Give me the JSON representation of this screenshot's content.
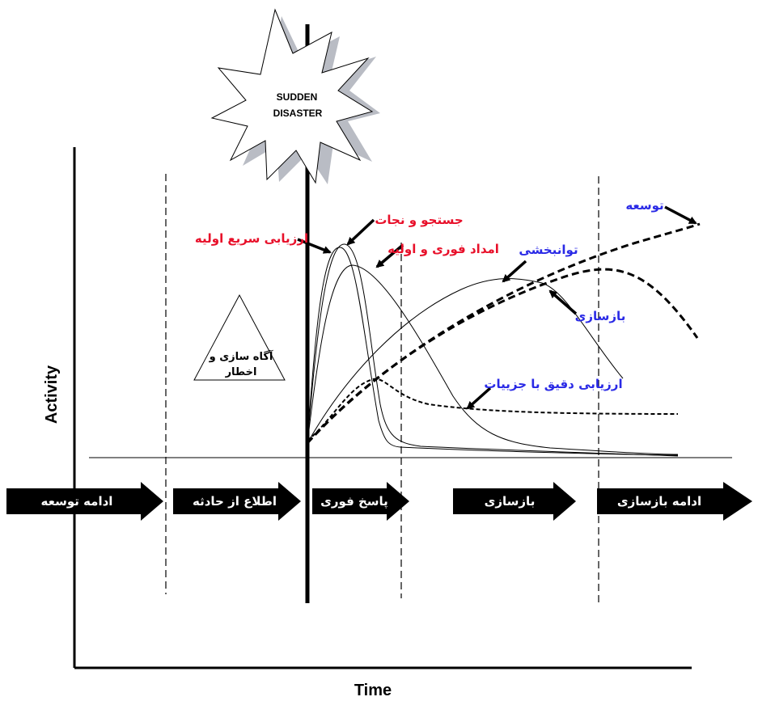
{
  "disaster": {
    "line1": "SUDDEN",
    "line2": "DISASTER"
  },
  "axes": {
    "x_label": "Time",
    "y_label": "Activity"
  },
  "warning": {
    "line1": "آگاه سازی و",
    "line2": "اخطار"
  },
  "curve_labels": {
    "search_rescue": "جستجو و نجات",
    "rapid_assessment": "ارزیابی سریع اولیه",
    "emergency_relief": "امداد فوری و اولیه",
    "rehabilitation": "توانبخشی",
    "reconstruction": "بازسازی",
    "detailed_assessment": "ارزیابی دقیق با جزییات",
    "development": "توسعه"
  },
  "phases": [
    "ادامه توسعه",
    "اطلاع از حادثه",
    "پاسخ فوری",
    "بازسازی",
    "ادامه بازسازی"
  ],
  "colors": {
    "red": "#e8102a",
    "blue": "#2a2ae6",
    "arrow": "#000000",
    "star_shadow": "#b9bcc4"
  }
}
